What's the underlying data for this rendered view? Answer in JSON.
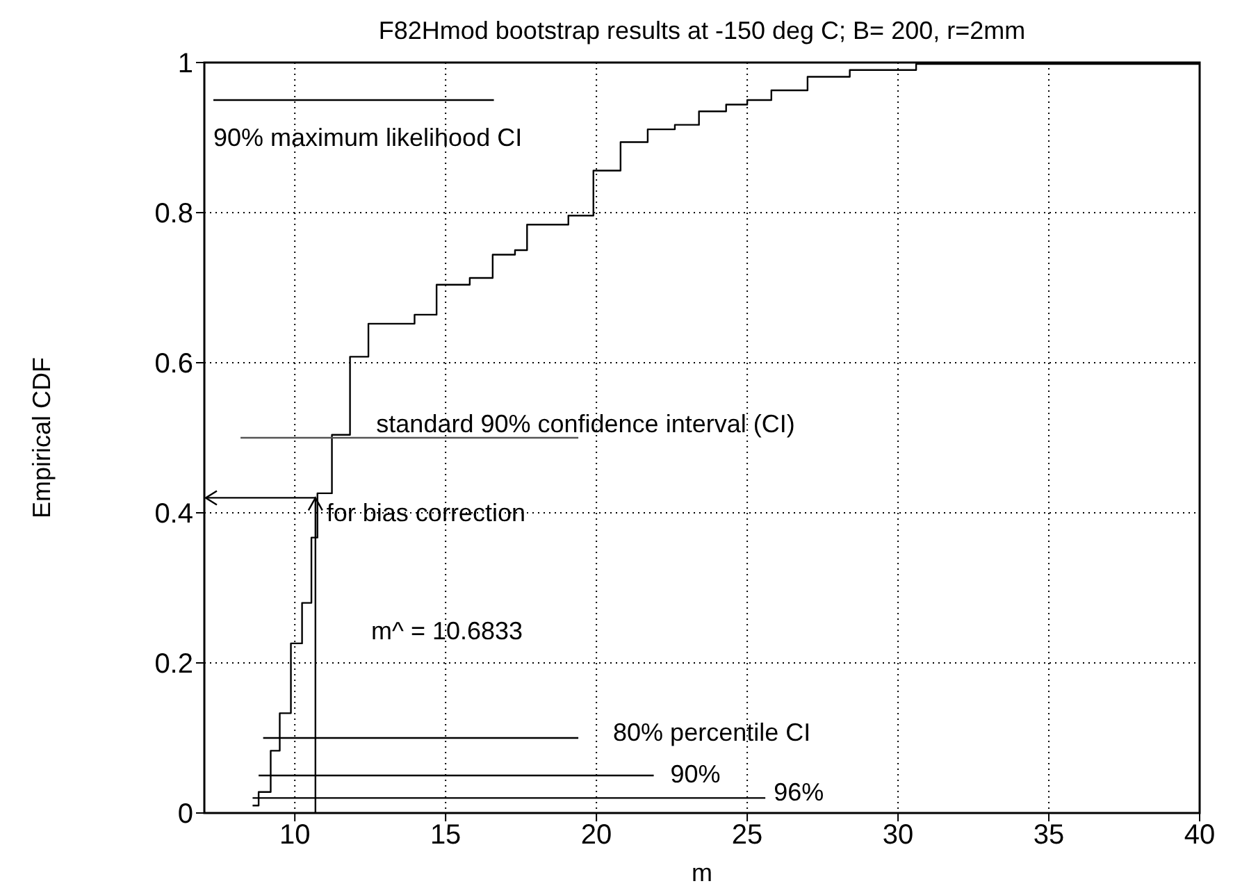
{
  "chart_data": {
    "type": "line",
    "title": "F82Hmod bootstrap results at -150 deg C; B= 200, r=2mm",
    "xlabel": "m",
    "ylabel": "Empirical CDF",
    "xlim": [
      7,
      40
    ],
    "xticks": [
      10,
      15,
      20,
      25,
      30,
      35,
      40
    ],
    "ylim": [
      0,
      1
    ],
    "yticks": [
      0,
      0.2,
      0.4,
      0.6,
      0.8,
      1
    ],
    "grid": true,
    "marker": "none",
    "series": [
      {
        "type": "step",
        "color": "#000000",
        "x": [
          8.6,
          8.8,
          9.2,
          9.5,
          9.87,
          10.24,
          10.55,
          10.75,
          11.23,
          11.83,
          12.44,
          13.97,
          14.7,
          15.8,
          16.56,
          17.3,
          17.7,
          19.07,
          19.9,
          20.8,
          21.7,
          22.6,
          23.4,
          24.3,
          25,
          25.8,
          27,
          28.4,
          30.6,
          40
        ],
        "values": [
          0.01,
          0.028,
          0.083,
          0.133,
          0.226,
          0.28,
          0.367,
          0.426,
          0.504,
          0.608,
          0.652,
          0.664,
          0.704,
          0.713,
          0.744,
          0.75,
          0.784,
          0.796,
          0.856,
          0.894,
          0.911,
          0.917,
          0.935,
          0.944,
          0.95,
          0.963,
          0.981,
          0.99,
          0.998,
          1
        ]
      },
      {
        "color": "#000000",
        "x": [
          7.3,
          16.6
        ],
        "values": [
          0.95,
          0.95
        ]
      },
      {
        "color": "#555555",
        "x": [
          8.2,
          19.4
        ],
        "values": [
          0.5,
          0.5
        ]
      },
      {
        "color": "#000000",
        "x": [
          8.95,
          19.4
        ],
        "values": [
          0.1,
          0.1
        ]
      },
      {
        "color": "#000000",
        "x": [
          8.8,
          21.9
        ],
        "values": [
          0.05,
          0.05
        ]
      },
      {
        "color": "#000000",
        "x": [
          8.6,
          25.6
        ],
        "values": [
          0.02,
          0.02
        ]
      }
    ],
    "annotations": [
      {
        "text": "90% maximum likelihood CI",
        "x": 7.3,
        "y": 0.95
      },
      {
        "text": "standard 90% confidence interval (CI)",
        "x": 12.7,
        "y": 0.5
      },
      {
        "text": "for bias correction",
        "x": 10.6833,
        "y": 0.42
      },
      "m^ = 10.6833",
      {
        "text": "80% percentile CI",
        "x": 19.4,
        "y": 0.1
      },
      {
        "text": "90%",
        "x": 21.9,
        "y": 0.05
      },
      {
        "text": "96%",
        "x": 25.6,
        "y": 0.02
      }
    ]
  }
}
